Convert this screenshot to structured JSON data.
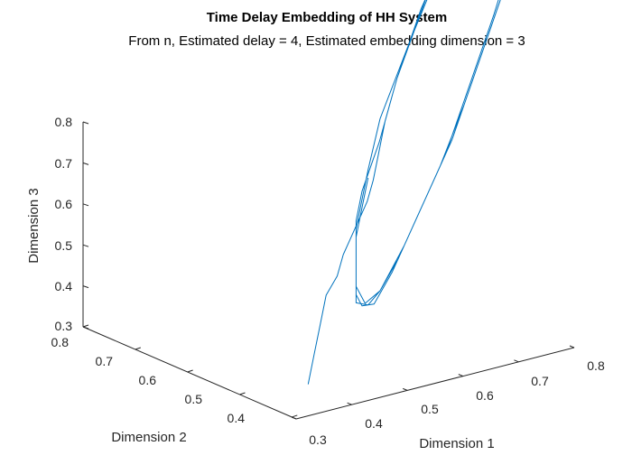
{
  "colors": {
    "trajectory": "#0072BD",
    "axis": "#262626",
    "background": "#ffffff"
  },
  "chart_data": {
    "type": "line3d",
    "title": "Time Delay Embedding of HH System",
    "subtitle": "From n, Estimated delay = 4, Estimated embedding dimension = 3",
    "xlabel": "Dimension 1",
    "ylabel": "Dimension 2",
    "zlabel": "Dimension 3",
    "xlim": [
      0.3,
      0.8
    ],
    "ylim": [
      0.3,
      0.8
    ],
    "zlim": [
      0.3,
      0.8
    ],
    "xticks": [
      "0.3",
      "0.4",
      "0.5",
      "0.6",
      "0.7",
      "0.8"
    ],
    "yticks": [
      "0.4",
      "0.5",
      "0.6",
      "0.7",
      "0.8"
    ],
    "zticks": [
      "0.3",
      "0.4",
      "0.5",
      "0.6",
      "0.7",
      "0.8"
    ],
    "grid": false,
    "series": [
      {
        "points": [
          [
            0.32,
            0.32,
            0.33
          ],
          [
            0.33,
            0.33,
            0.36
          ],
          [
            0.34,
            0.34,
            0.39
          ],
          [
            0.35,
            0.35,
            0.42
          ],
          [
            0.36,
            0.35,
            0.44
          ],
          [
            0.37,
            0.36,
            0.46
          ],
          [
            0.38,
            0.37,
            0.47
          ],
          [
            0.39,
            0.38,
            0.48
          ],
          [
            0.4,
            0.39,
            0.49
          ],
          [
            0.41,
            0.4,
            0.5
          ],
          [
            0.42,
            0.41,
            0.52
          ],
          [
            0.43,
            0.42,
            0.55
          ],
          [
            0.44,
            0.43,
            0.58
          ],
          [
            0.46,
            0.45,
            0.62
          ],
          [
            0.5,
            0.49,
            0.68
          ],
          [
            0.56,
            0.55,
            0.74
          ],
          [
            0.62,
            0.61,
            0.78
          ],
          [
            0.66,
            0.66,
            0.8
          ],
          [
            0.69,
            0.69,
            0.81
          ],
          [
            0.71,
            0.71,
            0.8
          ],
          [
            0.71,
            0.71,
            0.76
          ],
          [
            0.69,
            0.69,
            0.7
          ],
          [
            0.66,
            0.66,
            0.63
          ],
          [
            0.62,
            0.62,
            0.57
          ],
          [
            0.58,
            0.58,
            0.51
          ],
          [
            0.54,
            0.54,
            0.46
          ],
          [
            0.5,
            0.5,
            0.42
          ],
          [
            0.46,
            0.46,
            0.38
          ],
          [
            0.43,
            0.43,
            0.36
          ],
          [
            0.41,
            0.41,
            0.37
          ],
          [
            0.4,
            0.4,
            0.39
          ],
          [
            0.4,
            0.4,
            0.42
          ],
          [
            0.4,
            0.4,
            0.45
          ],
          [
            0.4,
            0.4,
            0.48
          ],
          [
            0.41,
            0.41,
            0.51
          ],
          [
            0.43,
            0.42,
            0.56
          ],
          [
            0.46,
            0.45,
            0.62
          ],
          [
            0.51,
            0.5,
            0.69
          ],
          [
            0.57,
            0.56,
            0.75
          ],
          [
            0.63,
            0.62,
            0.79
          ],
          [
            0.67,
            0.67,
            0.81
          ],
          [
            0.7,
            0.7,
            0.815
          ],
          [
            0.715,
            0.715,
            0.8
          ],
          [
            0.71,
            0.71,
            0.75
          ],
          [
            0.68,
            0.68,
            0.68
          ],
          [
            0.64,
            0.64,
            0.6
          ],
          [
            0.6,
            0.6,
            0.54
          ],
          [
            0.56,
            0.56,
            0.48
          ],
          [
            0.52,
            0.52,
            0.44
          ],
          [
            0.48,
            0.48,
            0.4
          ],
          [
            0.44,
            0.44,
            0.37
          ],
          [
            0.42,
            0.42,
            0.365
          ],
          [
            0.4,
            0.4,
            0.38
          ],
          [
            0.4,
            0.4,
            0.41
          ],
          [
            0.4,
            0.4,
            0.44
          ],
          [
            0.4,
            0.4,
            0.47
          ],
          [
            0.41,
            0.41,
            0.5
          ],
          [
            0.42,
            0.42,
            0.53
          ],
          [
            0.44,
            0.44,
            0.58
          ],
          [
            0.48,
            0.47,
            0.65
          ],
          [
            0.54,
            0.53,
            0.72
          ],
          [
            0.6,
            0.59,
            0.77
          ],
          [
            0.65,
            0.65,
            0.8
          ],
          [
            0.69,
            0.69,
            0.81
          ],
          [
            0.71,
            0.71,
            0.79
          ],
          [
            0.7,
            0.7,
            0.73
          ],
          [
            0.67,
            0.67,
            0.66
          ],
          [
            0.63,
            0.63,
            0.59
          ],
          [
            0.59,
            0.59,
            0.53
          ],
          [
            0.55,
            0.55,
            0.47
          ],
          [
            0.51,
            0.51,
            0.43
          ],
          [
            0.47,
            0.47,
            0.39
          ],
          [
            0.44,
            0.44,
            0.37
          ],
          [
            0.415,
            0.415,
            0.37
          ],
          [
            0.4,
            0.4,
            0.4
          ],
          [
            0.4,
            0.4,
            0.43
          ],
          [
            0.4,
            0.4,
            0.46
          ],
          [
            0.41,
            0.41,
            0.49
          ],
          [
            0.42,
            0.42,
            0.52
          ]
        ]
      }
    ]
  }
}
